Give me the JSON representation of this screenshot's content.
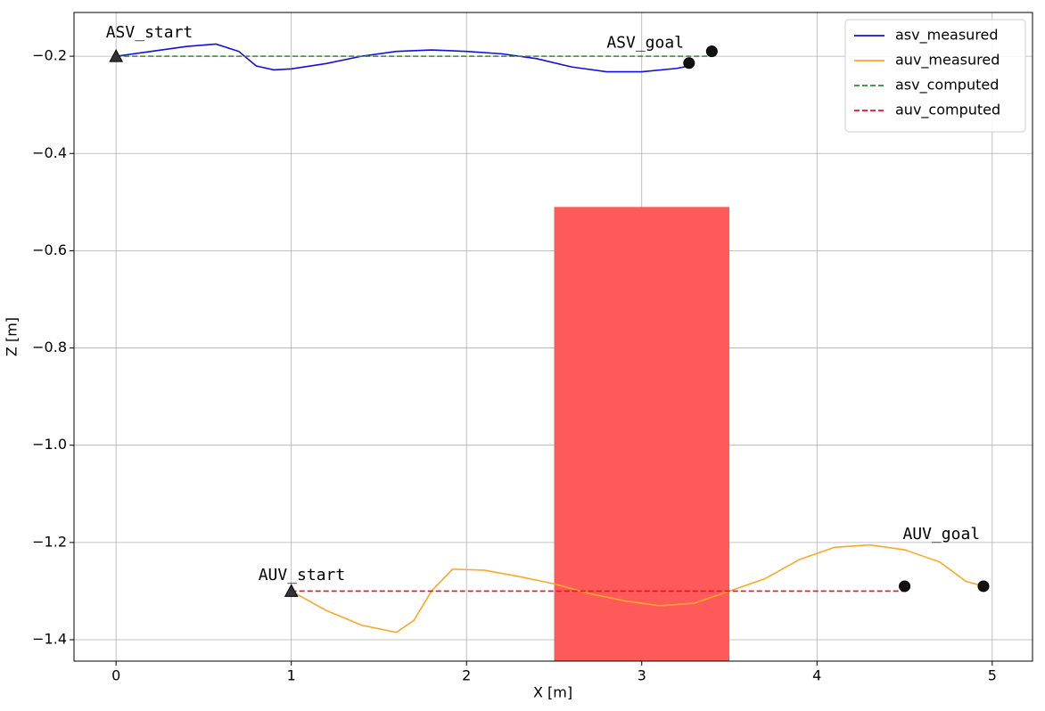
{
  "chart_data": {
    "type": "line",
    "xlabel": "X [m]",
    "ylabel": "Z [m]",
    "xlim": [
      -0.24,
      5.23
    ],
    "ylim": [
      -1.444,
      -0.11
    ],
    "xticks": [
      0,
      1,
      2,
      3,
      4,
      5
    ],
    "yticks": [
      {
        "value": -1.4,
        "label": "−1.4"
      },
      {
        "value": -1.2,
        "label": "−1.2"
      },
      {
        "value": -1.0,
        "label": "−1.0"
      },
      {
        "value": -0.8,
        "label": "−0.8"
      },
      {
        "value": -0.6,
        "label": "−0.6"
      },
      {
        "value": -0.4,
        "label": "−0.4"
      },
      {
        "value": -0.2,
        "label": "−0.2"
      }
    ],
    "grid": true,
    "legend": "upper-right",
    "regions": [
      {
        "x": [
          2.5,
          3.5
        ],
        "y": [
          -1.5,
          -0.51
        ],
        "color": "#ff5a5a"
      }
    ],
    "series": [
      {
        "name": "asv_measured",
        "color": "#1010e0",
        "dashed": false,
        "x": [
          0,
          0.2,
          0.4,
          0.57,
          0.7,
          0.8,
          0.9,
          1.0,
          1.2,
          1.4,
          1.6,
          1.8,
          2.0,
          2.2,
          2.4,
          2.6,
          2.8,
          3.0,
          3.2,
          3.27
        ],
        "values": [
          -0.2,
          -0.19,
          -0.18,
          -0.175,
          -0.19,
          -0.22,
          -0.228,
          -0.226,
          -0.215,
          -0.2,
          -0.19,
          -0.187,
          -0.19,
          -0.195,
          -0.205,
          -0.222,
          -0.232,
          -0.232,
          -0.225,
          -0.22
        ]
      },
      {
        "name": "auv_measured",
        "color": "#ffa726",
        "dashed": false,
        "x": [
          1,
          1.2,
          1.4,
          1.6,
          1.7,
          1.8,
          1.92,
          2.1,
          2.3,
          2.5,
          2.7,
          2.9,
          3.1,
          3.3,
          3.5,
          3.7,
          3.9,
          4.1,
          4.3,
          4.5,
          4.7,
          4.85,
          4.95
        ],
        "values": [
          -1.3,
          -1.34,
          -1.37,
          -1.385,
          -1.36,
          -1.3,
          -1.255,
          -1.257,
          -1.27,
          -1.285,
          -1.305,
          -1.32,
          -1.33,
          -1.325,
          -1.3,
          -1.275,
          -1.235,
          -1.21,
          -1.205,
          -1.215,
          -1.24,
          -1.28,
          -1.29
        ]
      },
      {
        "name": "asv_computed",
        "color": "#2e8b2e",
        "dashed": true,
        "x": [
          0,
          3.4
        ],
        "values": [
          -0.2,
          -0.2
        ]
      },
      {
        "name": "auv_computed",
        "color": "#e8102a",
        "dashed": true,
        "x": [
          1,
          4.5
        ],
        "values": [
          -1.3,
          -1.3
        ]
      }
    ],
    "points": [
      {
        "x": 0,
        "y": -0.2,
        "marker": "triangle"
      },
      {
        "x": 1,
        "y": -1.3,
        "marker": "triangle"
      },
      {
        "x": 3.27,
        "y": -0.214,
        "marker": "circle"
      },
      {
        "x": 3.4,
        "y": -0.19,
        "marker": "circle"
      },
      {
        "x": 4.5,
        "y": -1.29,
        "marker": "circle"
      },
      {
        "x": 4.95,
        "y": -1.29,
        "marker": "circle"
      }
    ],
    "annotations": [
      {
        "text": "ASV_start",
        "x": 0.19,
        "y": -0.152
      },
      {
        "text": "ASV_goal",
        "x": 3.02,
        "y": -0.173
      },
      {
        "text": "AUV_start",
        "x": 1.06,
        "y": -1.268
      },
      {
        "text": "AUV_goal",
        "x": 4.71,
        "y": -1.184
      }
    ]
  }
}
